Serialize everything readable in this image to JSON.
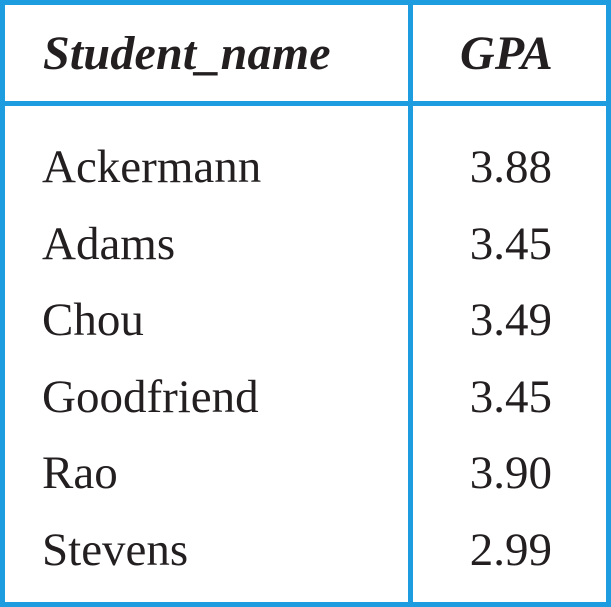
{
  "table": {
    "columns": [
      "Student_name",
      "GPA"
    ],
    "rows": [
      {
        "name": "Ackermann",
        "gpa": "3.88"
      },
      {
        "name": "Adams",
        "gpa": "3.45"
      },
      {
        "name": "Chou",
        "gpa": "3.49"
      },
      {
        "name": "Goodfriend",
        "gpa": "3.45"
      },
      {
        "name": "Rao",
        "gpa": "3.90"
      },
      {
        "name": "Stevens",
        "gpa": "2.99"
      }
    ]
  },
  "colors": {
    "border": "#1e9ce0",
    "text": "#231f20"
  }
}
